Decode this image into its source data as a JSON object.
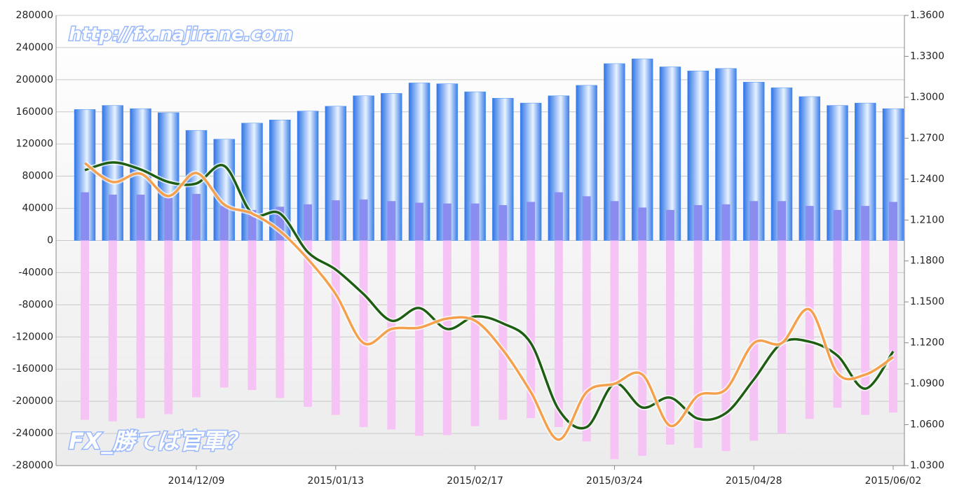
{
  "chart_data": {
    "type": "bar",
    "watermarks": [
      "http://fx.najirane.com",
      "FX_勝てば官軍？"
    ],
    "categories": [
      null,
      null,
      null,
      null,
      "2014/12/09",
      null,
      null,
      null,
      null,
      "2015/01/13",
      null,
      null,
      null,
      null,
      "2015/02/17",
      null,
      null,
      null,
      null,
      "2015/03/24",
      null,
      null,
      null,
      null,
      "2015/04/28",
      null,
      null,
      null,
      null,
      "2015/06/02"
    ],
    "ylim": [
      -280000,
      280000
    ],
    "yticks": [
      -280000,
      -240000,
      -200000,
      -160000,
      -120000,
      -80000,
      -40000,
      0,
      40000,
      80000,
      120000,
      160000,
      200000,
      240000,
      280000
    ],
    "y2lim": [
      1.03,
      1.36
    ],
    "y2ticks": [
      {
        "value": 1.03,
        "label": "1.0300"
      },
      {
        "value": 1.06,
        "label": "1.0600"
      },
      {
        "value": 1.09,
        "label": "1.0900"
      },
      {
        "value": 1.12,
        "label": "1.1200"
      },
      {
        "value": 1.15,
        "label": "1.1500"
      },
      {
        "value": 1.18,
        "label": "1.1800"
      },
      {
        "value": 1.21,
        "label": "1.2100"
      },
      {
        "value": 1.24,
        "label": "1.2400"
      },
      {
        "value": 1.27,
        "label": "1.2700"
      },
      {
        "value": 1.3,
        "label": "1.3000"
      },
      {
        "value": 1.33,
        "label": "1.3300"
      },
      {
        "value": 1.36,
        "label": "1.3600"
      }
    ],
    "grid": true,
    "series": [
      {
        "type": "bar",
        "color": "#4a8ff0",
        "values": [
          163000,
          168000,
          164000,
          159000,
          137000,
          126000,
          146000,
          150000,
          161000,
          167000,
          180000,
          183000,
          196000,
          195000,
          185000,
          177000,
          171000,
          180000,
          193000,
          220000,
          226000,
          216000,
          211000,
          214000,
          197000,
          190000,
          179000,
          168000,
          171000,
          164000
        ]
      },
      {
        "type": "bar",
        "color": "#8a8cf0",
        "values": [
          60000,
          57000,
          57000,
          53000,
          58000,
          43000,
          38000,
          42000,
          45000,
          50000,
          51000,
          49000,
          47000,
          46000,
          46000,
          44000,
          48000,
          60000,
          55000,
          49000,
          41000,
          38000,
          44000,
          45000,
          49000,
          49000,
          43000,
          38000,
          43000,
          48000
        ]
      },
      {
        "type": "bar",
        "color": "#f6c4f4",
        "values": [
          -223000,
          -225000,
          -221000,
          -216000,
          -195000,
          -183000,
          -186000,
          -196000,
          -207000,
          -217000,
          -232000,
          -235000,
          -243000,
          -242000,
          -231000,
          -223000,
          -221000,
          -232000,
          -250000,
          -272000,
          -268000,
          -254000,
          -258000,
          -262000,
          -249000,
          -240000,
          -222000,
          -208000,
          -217000,
          -214000
        ]
      },
      {
        "type": "line",
        "axis": "y2",
        "color": "#1e5e12",
        "values": [
          1.2466,
          1.2522,
          1.2471,
          1.2379,
          1.2368,
          1.2497,
          1.2148,
          1.2148,
          1.1865,
          1.1737,
          1.1557,
          1.1362,
          1.1455,
          1.1301,
          1.1393,
          1.1342,
          1.1198,
          1.0711,
          1.0582,
          1.09,
          1.0726,
          1.0798,
          1.0644,
          1.0685,
          1.0931,
          1.1198,
          1.1208,
          1.1106,
          1.0864,
          1.1137
        ]
      },
      {
        "type": "line",
        "axis": "y2",
        "color": "#f5a04c",
        "values": [
          1.2517,
          1.2379,
          1.244,
          1.2276,
          1.2445,
          1.2214,
          1.2148,
          1.2019,
          1.1814,
          1.1557,
          1.1198,
          1.1301,
          1.1311,
          1.1378,
          1.1362,
          1.1147,
          1.0839,
          1.049,
          1.0839,
          1.09,
          1.0967,
          1.0592,
          1.0813,
          1.0859,
          1.1198,
          1.1198,
          1.1444,
          1.0977,
          1.0967,
          1.1095
        ]
      }
    ]
  }
}
